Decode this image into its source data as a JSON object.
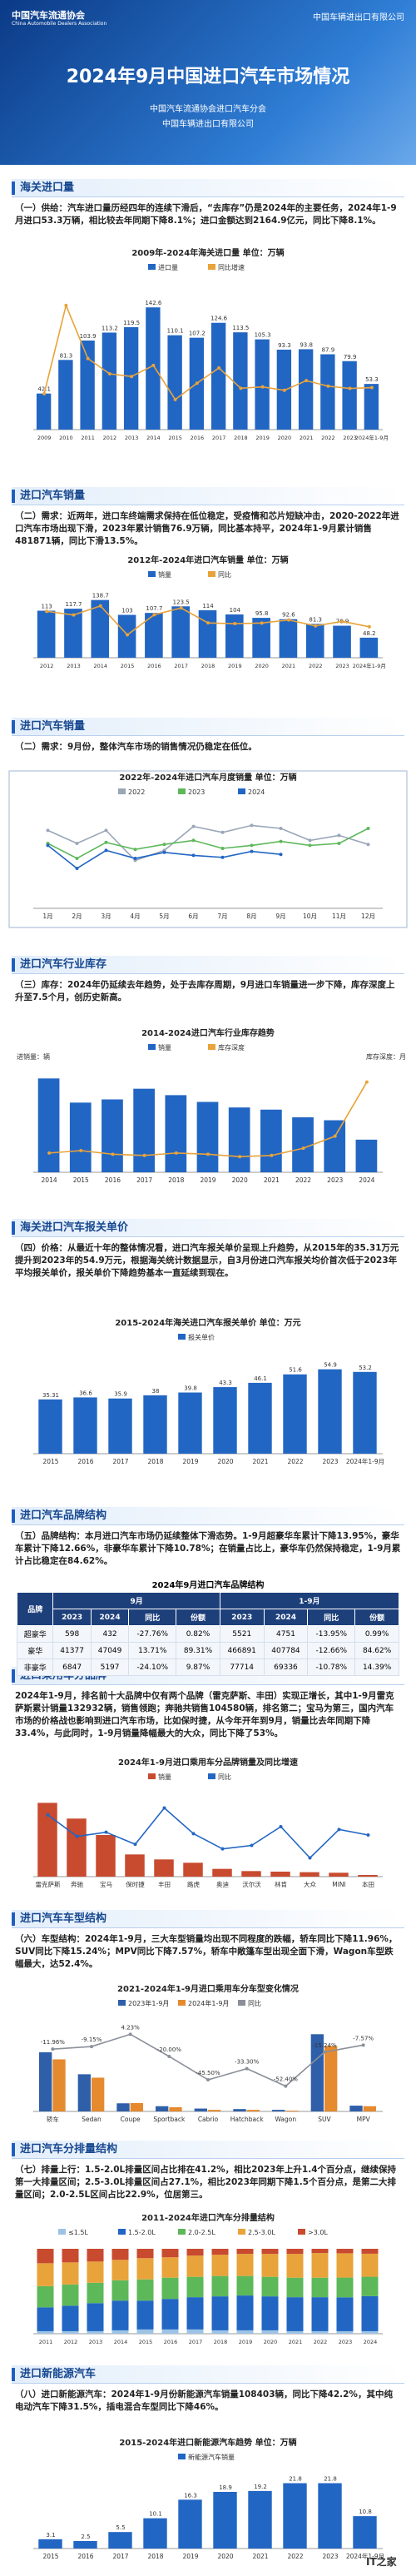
{
  "header": {
    "logo_left": "中国汽车流通协会",
    "logo_left_en": "China Automobile Dealers Association",
    "logo_right": "中国车辆进出口有限公司",
    "title": "2024年9月中国进口汽车市场情况",
    "org1": "中国汽车流通协会进口汽车分会",
    "org2": "中国车辆进出口有限公司"
  },
  "sections": [
    {
      "heading": "海关进口量",
      "text": "（一）供给：汽车进口量历经四年的连续下滑后，“去库存”仍是2024年的主要任务，2024年1-9月进口53.3万辆，相比较去年同期下降8.1%；进口金额达到2164.9亿元，同比下降8.1%。"
    },
    {
      "heading": "进口汽车销量",
      "text": "（二）需求：近两年，进口车终端需求保持在低位稳定，受疫情和芯片短缺冲击，2020-2022年进口汽车市场出现下滑，2023年累计销售76.9万辆，同比基本持平，2024年1-9月累计销售481871辆，同比下滑13.5%。"
    },
    {
      "heading": "进口汽车销量",
      "text": "（二）需求：9月份，整体汽车市场的销售情况仍稳定在低位。"
    },
    {
      "heading": "进口汽车行业库存",
      "text": "（三）库存：2024年仍延续去年趋势，处于去库存周期，9月进口车销量进一步下降，库存深度上升至7.5个月，创历史新高。"
    },
    {
      "heading": "海关进口汽车报关单价",
      "text": "（四）价格：从最近十年的整体情况看，进口汽车报关单价呈现上升趋势，从2015年的35.31万元提升到2023年的54.9万元，根据海关统计数据显示，自3月份进口汽车报关均价首次低于2023年平均报关单价，报关单价下降趋势基本一直延续到现在。"
    },
    {
      "heading": "进口汽车品牌结构",
      "text": "（五）品牌结构：本月进口汽车市场仍延续整体下滑态势。1-9月超豪华车累计下降13.95%，豪华车累计下降12.66%，非豪华车累计下降10.78%；在销量占比上，豪华车仍然保持稳定，1-9月累计占比稳定在84.62%。"
    },
    {
      "heading": "进口乘用车分品牌",
      "text": "2024年1-9月，排名前十大品牌中仅有两个品牌（雷克萨斯、丰田）实现正增长，其中1-9月雷克萨斯累计销量132932辆，销售领跑；奔驰共销售104580辆，排名第二；宝马为第三，国内汽车市场的价格战也影响到进口汽车市场，比如保时捷，从今年开年到9月，销量比去年同期下降33.4%，与此同时，1-9月销量降幅最大的大众，同比下降了53%。"
    },
    {
      "heading": "进口汽车车型结构",
      "text": "（六）车型结构：2024年1-9月，三大车型销量均出现不同程度的跌幅，轿车同比下降11.96%，SUV同比下降15.24%；MPV同比下降7.57%，轿车中敞篷车型出现全面下滑，Wagon车型跌幅最大，达52.4%。"
    },
    {
      "heading": "进口汽车分排量结构",
      "text": "（七）排量上行：1.5-2.0L排量区间占比排在41.2%，相比2023年上升1.4个百分点，继续保持第一大排量区间；2.5-3.0L排量区间占27.1%，相比2023年同期下降1.5个百分点，是第二大排量区间；2.0-2.5L区间占比22.9%，位居第三。"
    },
    {
      "heading": "进口新能源汽车",
      "text": "（八）进口新能源汽车：2024年1-9月份新能源汽车销量108403辆，同比下降42.2%，其中纯电动汽车下降31.5%，插电混合车型同比下降46%。"
    }
  ],
  "chart_data": [
    {
      "type": "bar",
      "title": "2009年-2024年海关进口量  单位：万辆",
      "data_labels": true,
      "categories": [
        "2009",
        "2010",
        "2011",
        "2012",
        "2013",
        "2014",
        "2015",
        "2016",
        "2017",
        "2018",
        "2019",
        "2020",
        "2021",
        "2022",
        "2023",
        "2024年1-9月"
      ],
      "series": [
        {
          "name": "进口量",
          "color": "#2266c4",
          "values": [
            42.1,
            81.3,
            103.9,
            113.2,
            119.5,
            142.6,
            110.1,
            107.2,
            124.6,
            113.5,
            105.3,
            93.3,
            93.8,
            87.9,
            79.9,
            53.3
          ]
        },
        {
          "name": "同比增速",
          "color": "#e8a33a",
          "axis": "y2",
          "values": [
            -15.6,
            93.4,
            27.8,
            8.9,
            5.6,
            19.3,
            -22.8,
            -2.6,
            16.2,
            -8.9,
            -7.2,
            -11.4,
            0.5,
            -6.3,
            -9.1,
            -8.1
          ]
        }
      ],
      "ylim": [
        0,
        170
      ],
      "y2lim": [
        -60,
        120
      ]
    },
    {
      "type": "bar",
      "title": "2012年-2024年进口汽车销量  单位：万辆",
      "data_labels": true,
      "categories": [
        "2012",
        "2013",
        "2014",
        "2015",
        "2016",
        "2017",
        "2018",
        "2019",
        "2020",
        "2021",
        "2022",
        "2023",
        "2024年1-9月"
      ],
      "series": [
        {
          "name": "销量",
          "color": "#2266c4",
          "values": [
            113.0,
            117.7,
            138.7,
            103.0,
            107.7,
            123.5,
            114.0,
            104.0,
            95.8,
            92.6,
            81.3,
            76.9,
            48.2
          ]
        },
        {
          "name": "同比",
          "color": "#e8a33a",
          "axis": "y2",
          "values": [
            9.7,
            4.2,
            17.8,
            -25.7,
            4.6,
            14.7,
            -7.7,
            -8.8,
            -7.9,
            -3.3,
            -12.2,
            -5.4,
            -13.5
          ]
        }
      ],
      "ylim": [
        0,
        160
      ],
      "y2lim": [
        -60,
        40
      ]
    },
    {
      "type": "line",
      "title": "2022年-2024年进口汽车月度销量  单位：万辆",
      "categories": [
        "1月",
        "2月",
        "3月",
        "4月",
        "5月",
        "6月",
        "7月",
        "8月",
        "9月",
        "10月",
        "11月",
        "12月"
      ],
      "series": [
        {
          "name": "2022",
          "color": "#9aa6b8",
          "values": [
            7.8,
            6.5,
            7.8,
            4.8,
            5.8,
            8.2,
            7.6,
            8.3,
            8.0,
            6.8,
            7.3,
            6.4
          ]
        },
        {
          "name": "2023",
          "color": "#5db85a",
          "values": [
            6.5,
            5.0,
            6.6,
            5.9,
            6.4,
            6.8,
            6.0,
            6.3,
            6.7,
            6.3,
            6.5,
            8.0
          ]
        },
        {
          "name": "2024",
          "color": "#2266c4",
          "values": [
            6.3,
            4.0,
            5.8,
            5.0,
            5.6,
            5.3,
            5.1,
            5.7,
            5.4,
            null,
            null,
            null
          ]
        }
      ],
      "ylim": [
        0,
        10
      ]
    },
    {
      "type": "bar",
      "title": "2014-2024进口汽车行业库存趋势",
      "y_label": "进销量：辆",
      "y2_label": "库存深度：月",
      "categories": [
        "2014",
        "2015",
        "2016",
        "2017",
        "2018",
        "2019",
        "2020",
        "2021",
        "2022",
        "2023",
        "2024"
      ],
      "series": [
        {
          "name": "销量",
          "color": "#2266c4",
          "values": [
            1387000,
            1030000,
            1077000,
            1235000,
            1140000,
            1040000,
            958000,
            926000,
            813000,
            769000,
            482000
          ]
        },
        {
          "name": "库存深度",
          "color": "#e8a33a",
          "axis": "y2",
          "values": [
            1.6,
            1.8,
            1.5,
            1.4,
            1.6,
            1.5,
            1.3,
            1.4,
            2.0,
            3.0,
            7.5
          ]
        }
      ],
      "ylim": [
        0,
        1600000
      ],
      "y2lim": [
        0,
        9
      ]
    },
    {
      "type": "bar",
      "title": "2015-2024年海关进口汽车报关单价  单位：万元",
      "data_labels": true,
      "categories": [
        "2015",
        "2016",
        "2017",
        "2018",
        "2019",
        "2020",
        "2021",
        "2022",
        "2023",
        "2024年1-9月"
      ],
      "series": [
        {
          "name": "报关单价",
          "color": "#2266c4",
          "values": [
            35.31,
            36.6,
            35.9,
            38.0,
            39.8,
            43.3,
            46.1,
            51.6,
            54.9,
            53.2
          ]
        }
      ],
      "ylim": [
        0,
        65
      ]
    },
    {
      "type": "bar",
      "title": "2024年1-9月进口乘用车分品牌销量及同比增速",
      "categories": [
        "雷克萨斯",
        "奔驰",
        "宝马",
        "保时捷",
        "丰田",
        "路虎",
        "奥迪",
        "沃尔沃",
        "林肯",
        "大众",
        "MINI",
        "本田"
      ],
      "series": [
        {
          "name": "销量",
          "color": "#c84a2f",
          "values": [
            132932,
            104580,
            75020,
            40000,
            31000,
            25000,
            14000,
            10000,
            9000,
            8000,
            7000,
            3000
          ]
        },
        {
          "name": "同比",
          "color": "#2266c4",
          "axis": "y2",
          "values": [
            9,
            -22,
            -16,
            -33.4,
            19,
            -18,
            -40,
            -35,
            -8,
            -53,
            -12,
            -20
          ]
        }
      ],
      "ylim": [
        0,
        150000
      ],
      "y2lim": [
        -80,
        40
      ]
    },
    {
      "type": "bar",
      "title": "2021-2024年1-9月进口乘用车分车型变化情况",
      "categories": [
        "轿车",
        "Sedan",
        "Coupe",
        "Sportback",
        "Cabrio",
        "Hatchback",
        "Wagon",
        "SUV",
        "MPV"
      ],
      "series": [
        {
          "name": "2023年1-9月",
          "color": "#2f5fa8",
          "values": [
            22.6,
            14.2,
            3.1,
            2.0,
            1.1,
            0.9,
            0.6,
            29.5,
            2.2
          ]
        },
        {
          "name": "2024年1-9月",
          "color": "#e58a2e",
          "values": [
            19.9,
            12.9,
            3.2,
            1.6,
            0.6,
            0.6,
            0.3,
            25.0,
            2.0
          ]
        },
        {
          "name": "同比",
          "color": "#8a8f99",
          "axis": "y2",
          "values": [
            -11.96,
            -9.15,
            4.23,
            -20.0,
            -45.5,
            -33.3,
            -52.4,
            -15.24,
            -7.57
          ],
          "value_labels": [
            "-11.96%",
            "-9.15%",
            "4.23%",
            "-20.00%",
            "-45.50%",
            "-33.30%",
            "-52.40%",
            "-15.24%",
            "-7.57%"
          ]
        }
      ],
      "ylim": [
        0,
        35
      ],
      "y2lim": [
        -80,
        20
      ]
    },
    {
      "type": "bar",
      "title": "2011-2024年进口汽车分排量结构",
      "stacked": true,
      "categories": [
        "2011",
        "2012",
        "2013",
        "2014",
        "2015",
        "2016",
        "2017",
        "2018",
        "2019",
        "2020",
        "2021",
        "2022",
        "2023",
        "2024"
      ],
      "series": [
        {
          "name": "≤1.5L",
          "color": "#9cc3e6",
          "values": [
            3,
            3,
            3,
            4,
            5,
            5,
            5,
            4,
            4,
            4,
            3,
            3,
            3,
            3
          ]
        },
        {
          "name": "1.5-2.0L",
          "color": "#2266c4",
          "values": [
            28,
            30,
            33,
            35,
            34,
            36,
            38,
            40,
            41,
            40,
            40,
            40,
            39.8,
            41.2
          ]
        },
        {
          "name": "2.0-2.5L",
          "color": "#5db85a",
          "values": [
            25,
            25,
            24,
            24,
            25,
            25,
            24,
            24,
            23,
            23,
            23,
            23,
            23.3,
            22.9
          ]
        },
        {
          "name": "2.5-3.0L",
          "color": "#e8a33a",
          "values": [
            27,
            26,
            25,
            24,
            25,
            24,
            25,
            25,
            26,
            27,
            28,
            29,
            28.6,
            27.1
          ]
        },
        {
          "name": ">3.0L",
          "color": "#c84a2f",
          "values": [
            17,
            16,
            15,
            13,
            11,
            10,
            8,
            7,
            6,
            6,
            6,
            5,
            5.3,
            5.8
          ]
        }
      ],
      "ylim": [
        0,
        100
      ]
    },
    {
      "type": "bar",
      "title": "2015-2024年进口新能源汽车趋势  单位：万辆",
      "data_labels": true,
      "categories": [
        "2015",
        "2016",
        "2017",
        "2018",
        "2019",
        "2020",
        "2021",
        "2022",
        "2023",
        "2024年1-9月"
      ],
      "series": [
        {
          "name": "新能源汽车销量",
          "color": "#2266c4",
          "values": [
            3.1,
            2.5,
            5.5,
            10.1,
            16.3,
            18.9,
            19.2,
            21.8,
            21.8,
            10.8
          ]
        }
      ],
      "ylim": [
        0,
        25
      ]
    }
  ],
  "table": {
    "title": "2024年9月进口汽车品牌结构",
    "groups": [
      "9月",
      "1-9月"
    ],
    "columns": [
      "品牌",
      "2023",
      "2024",
      "同比",
      "份额",
      "2023",
      "2024",
      "同比",
      "份额"
    ],
    "rows": [
      [
        "超豪华",
        598,
        432,
        "-27.76%",
        "0.82%",
        5521,
        4751,
        "-13.95%",
        "0.99%"
      ],
      [
        "豪华",
        41377,
        47049,
        "13.71%",
        "89.31%",
        466891,
        407784,
        "-12.66%",
        "84.62%"
      ],
      [
        "非豪华",
        6847,
        5197,
        "-24.10%",
        "9.87%",
        77714,
        69336,
        "-10.78%",
        "14.39%"
      ]
    ]
  },
  "watermark": "IT之家"
}
